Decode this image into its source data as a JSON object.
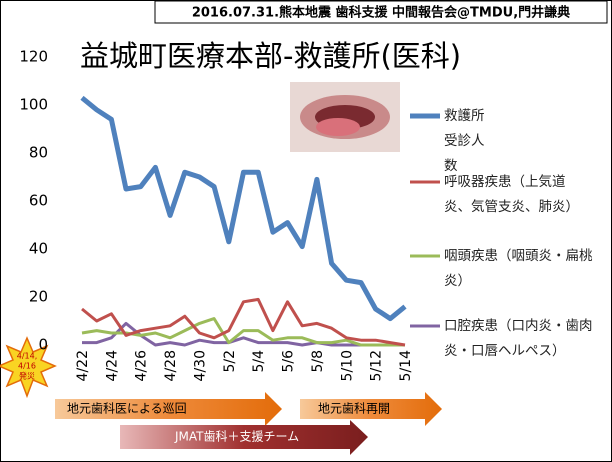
{
  "header": "2016.07.31.熊本地震 歯科支援 中間報告会@TMDU,門井謙典",
  "chart_data": {
    "type": "line",
    "title": "益城町医療本部-救護所(医科)",
    "categories": [
      "4/22",
      null,
      "4/24",
      null,
      "4/26",
      null,
      "4/28",
      null,
      "4/30",
      null,
      "5/2",
      null,
      "5/4",
      null,
      "5/6",
      null,
      "5/8",
      null,
      "5/10",
      null,
      "5/12",
      null,
      "5/14"
    ],
    "series": [
      {
        "name": "救護所受診人数",
        "color": "#4f81bd",
        "values": [
          103,
          98,
          94,
          65,
          66,
          74,
          54,
          72,
          70,
          66,
          43,
          72,
          72,
          47,
          51,
          41,
          69,
          34,
          27,
          26,
          15,
          11,
          16
        ]
      },
      {
        "name": "呼吸器疾患（上気道炎、気管支炎、肺炎）",
        "color": "#c0504d",
        "values": [
          15,
          10,
          13,
          4,
          6,
          7,
          8,
          12,
          5,
          3,
          6,
          18,
          19,
          6,
          18,
          8,
          9,
          7,
          3,
          2,
          2,
          1,
          0
        ]
      },
      {
        "name": "咽頭疾患（咽頭炎・扁桃炎）",
        "color": "#9bbb59",
        "values": [
          5,
          6,
          5,
          5,
          4,
          5,
          3,
          6,
          9,
          11,
          1,
          6,
          6,
          2,
          3,
          3,
          1,
          1,
          2,
          0,
          0,
          0,
          0
        ]
      },
      {
        "name": "口腔疾患（口内炎・歯肉炎・口唇ヘルペス）",
        "color": "#8064a2",
        "values": [
          1,
          1,
          3,
          9,
          4,
          0,
          1,
          0,
          2,
          1,
          1,
          3,
          1,
          1,
          1,
          0,
          1,
          0,
          0,
          0,
          0,
          0,
          0
        ]
      }
    ],
    "ylim": [
      0,
      120
    ],
    "yticks": [
      0,
      20,
      40,
      60,
      80,
      100,
      120
    ]
  },
  "annotations": {
    "disaster": [
      "4/14,",
      "4/16",
      "発災"
    ],
    "local_rounds": "地元歯科医による巡回",
    "jmat": "JMAT歯科＋支援チーム",
    "local_reopen": "地元歯科再開"
  }
}
